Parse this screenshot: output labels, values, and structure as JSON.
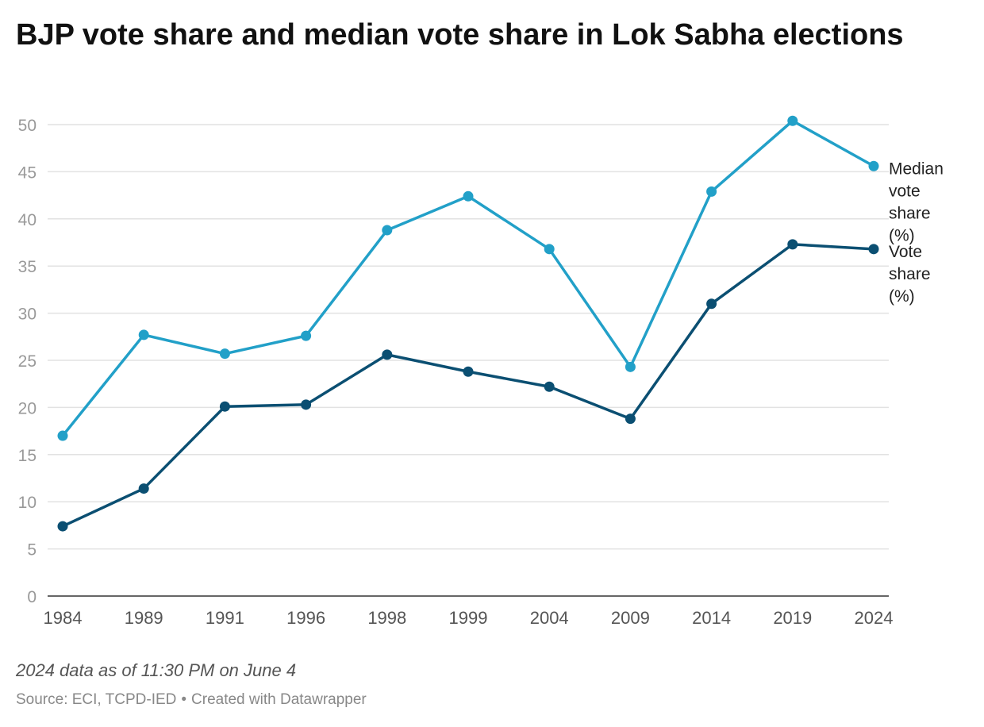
{
  "chart_data": {
    "type": "line",
    "title": "BJP vote share and median vote share in Lok Sabha elections",
    "categories": [
      "1984",
      "1989",
      "1991",
      "1996",
      "1998",
      "1999",
      "2004",
      "2009",
      "2014",
      "2019",
      "2024"
    ],
    "series": [
      {
        "name": "Median vote share (%)",
        "label_lines": [
          "Median",
          "vote",
          "share",
          "(%)"
        ],
        "color": "#22a0c8",
        "values": [
          17.0,
          27.7,
          25.7,
          27.6,
          38.8,
          42.4,
          36.8,
          24.3,
          42.9,
          50.4,
          45.6
        ]
      },
      {
        "name": "Vote share (%)",
        "label_lines": [
          "Vote",
          "share",
          "(%)"
        ],
        "color": "#0b4f72",
        "values": [
          7.4,
          11.4,
          20.1,
          20.3,
          25.6,
          23.8,
          22.2,
          18.8,
          31.0,
          37.3,
          36.8
        ]
      }
    ],
    "y_ticks": [
      0,
      5,
      10,
      15,
      20,
      25,
      30,
      35,
      40,
      45,
      50
    ],
    "ylim": [
      0,
      50
    ],
    "grid": true,
    "legend": "direct labels at right end of lines"
  },
  "footer": {
    "note": "2024 data as of 11:30 PM on June 4",
    "source": "Source: ECI, TCPD-IED",
    "separator": "•",
    "credit": "Created with Datawrapper"
  }
}
